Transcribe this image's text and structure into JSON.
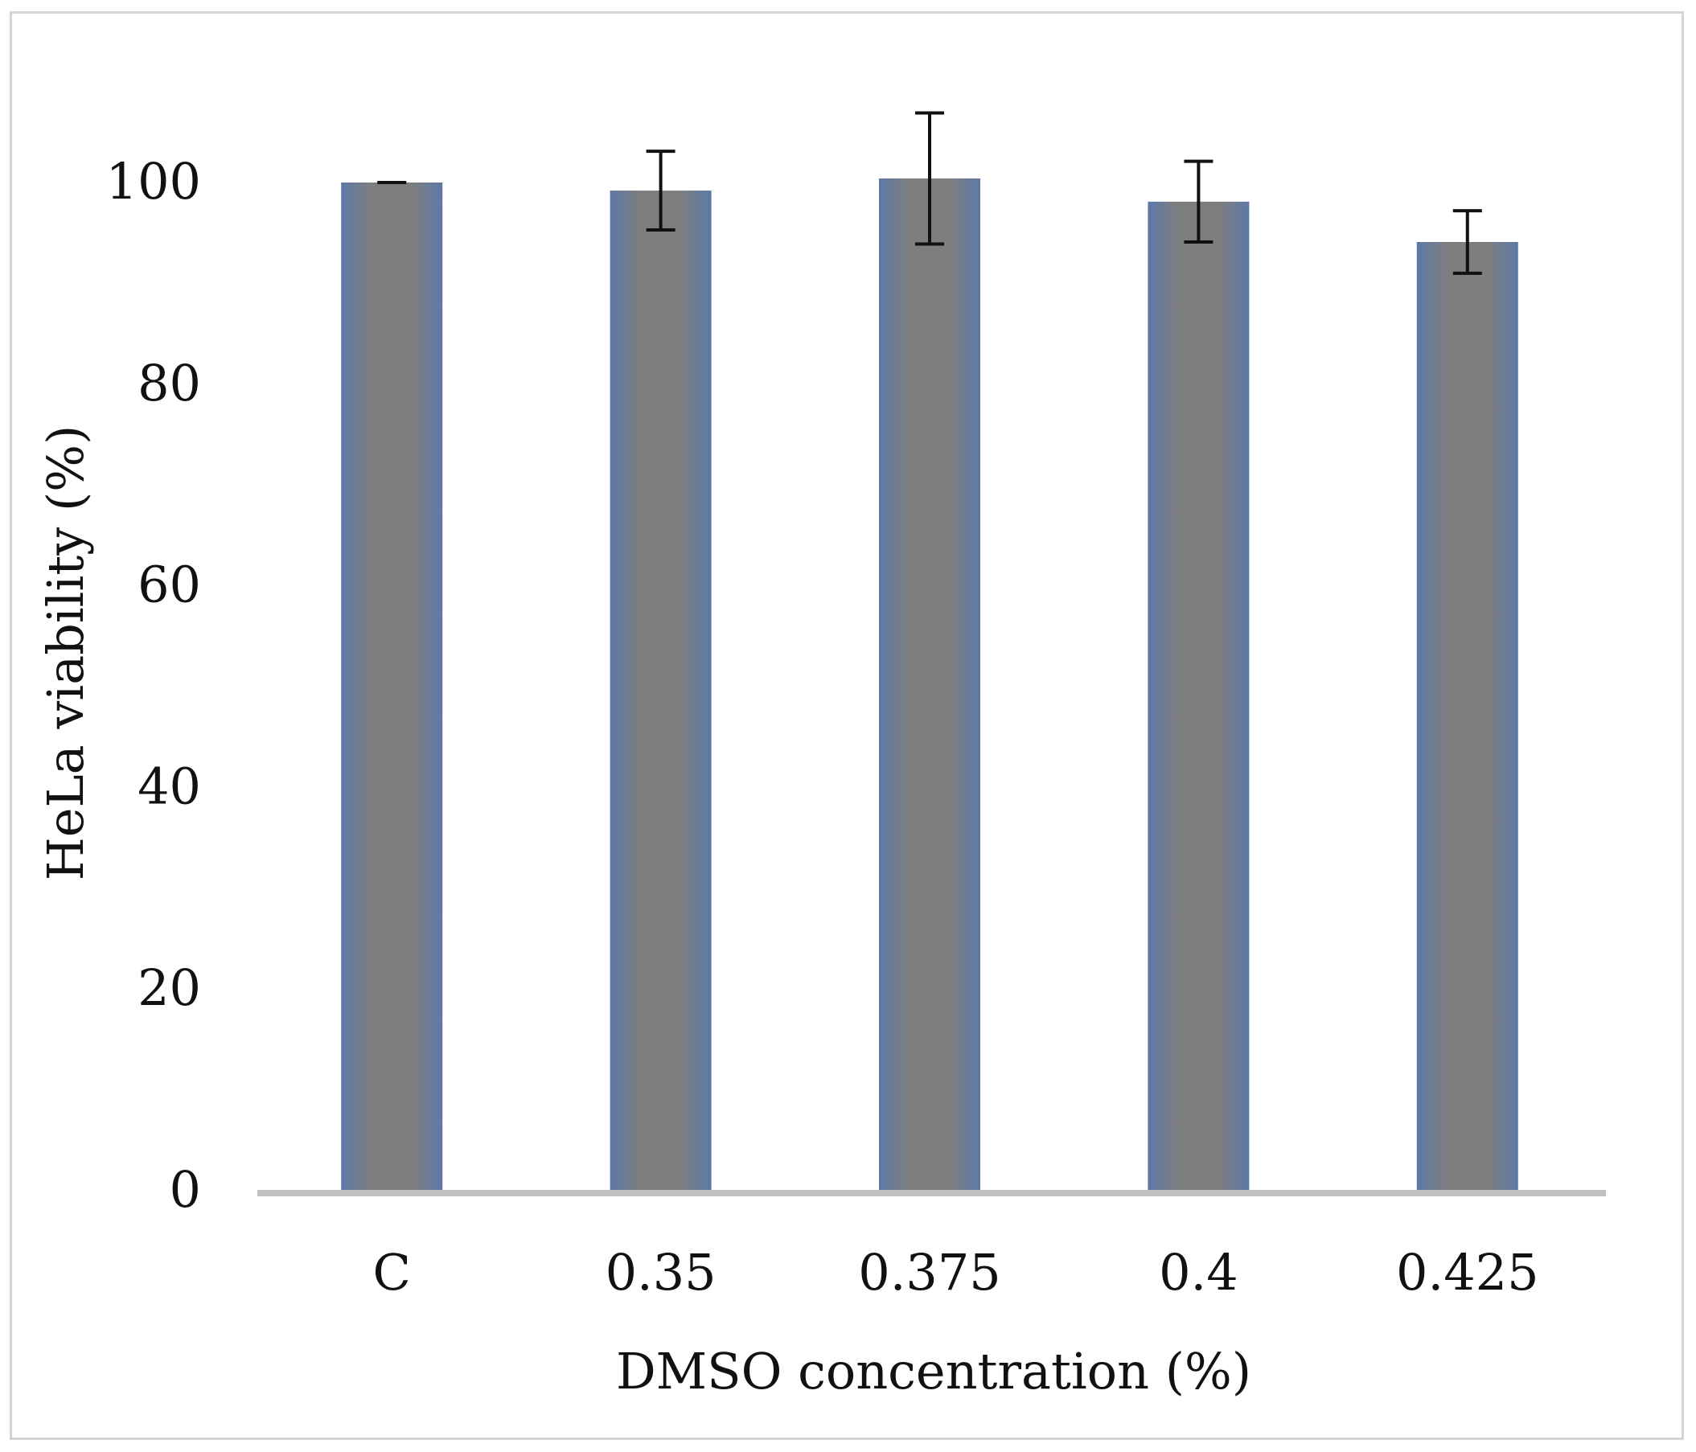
{
  "chart_data": {
    "type": "bar",
    "title": "",
    "xlabel": "DMSO concentration (%)",
    "ylabel": "HeLa viability (%)",
    "categories": [
      "C",
      "0.35",
      "0.375",
      "0.4",
      "0.425"
    ],
    "values": [
      100,
      99.2,
      100.4,
      98.1,
      94.1
    ],
    "errors": [
      0,
      3.9,
      6.5,
      4.0,
      3.1
    ],
    "ylim": [
      0,
      100
    ],
    "yticks": [
      "0",
      "20",
      "40",
      "60",
      "80",
      "100"
    ],
    "grid": false,
    "colors": {
      "bar_fill": "#7d7d7d",
      "bar_edge": "#5a78ad",
      "axis_line": "#c0c0c0",
      "error_bar": "#111111"
    }
  }
}
